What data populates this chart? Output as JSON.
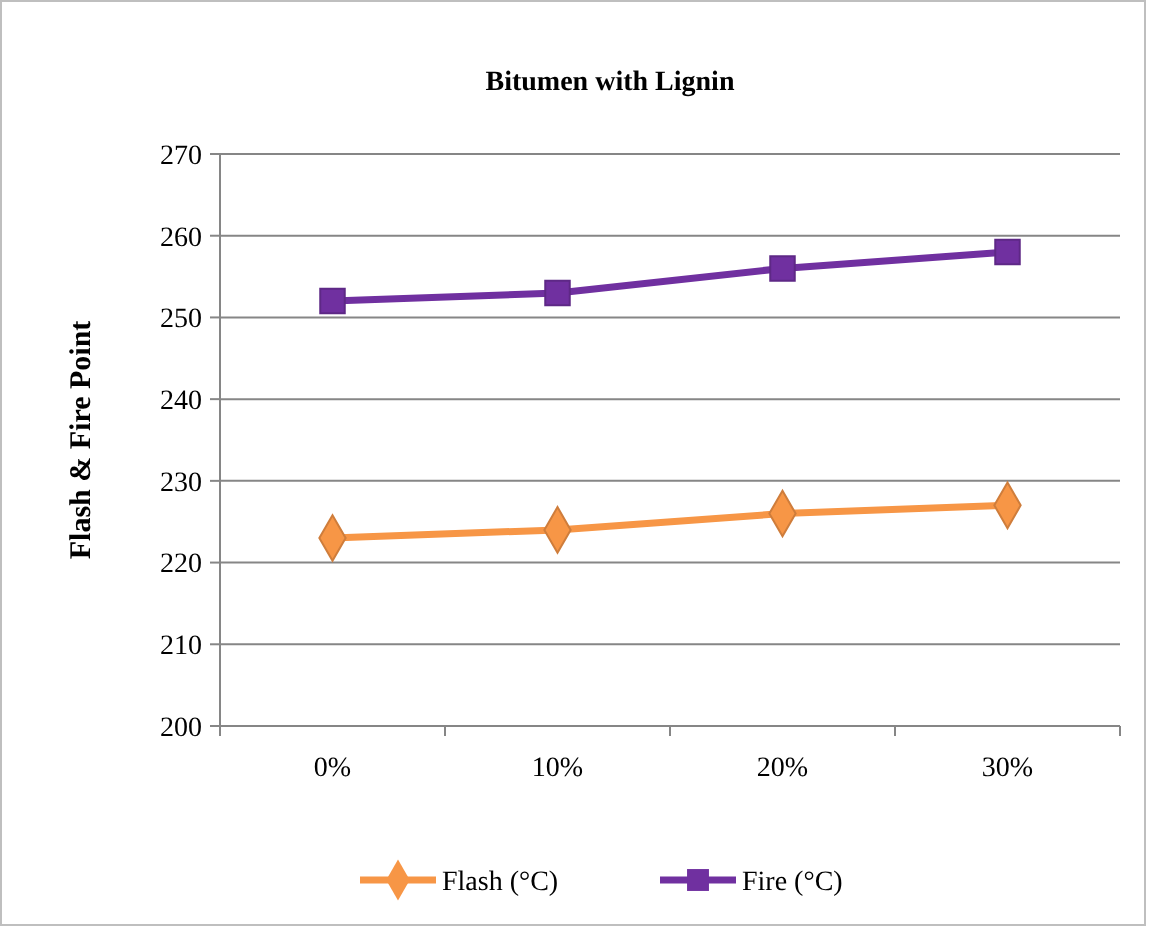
{
  "chart_data": {
    "type": "line",
    "title": "Bitumen with Lignin",
    "ylabel": "Flash & Fire Point",
    "categories": [
      "0%",
      "10%",
      "20%",
      "30%"
    ],
    "series": [
      {
        "name": "Flash (°C)",
        "color": "#f79646",
        "values": [
          223,
          224,
          226,
          227
        ],
        "marker": "diamond"
      },
      {
        "name": "Fire (°C)",
        "color": "#7030a0",
        "values": [
          252,
          253,
          256,
          258
        ],
        "marker": "square"
      }
    ],
    "ylim": [
      200,
      270
    ],
    "yticks": [
      200,
      210,
      220,
      230,
      240,
      250,
      260,
      270
    ],
    "grid": "y",
    "legend": "bottom"
  }
}
